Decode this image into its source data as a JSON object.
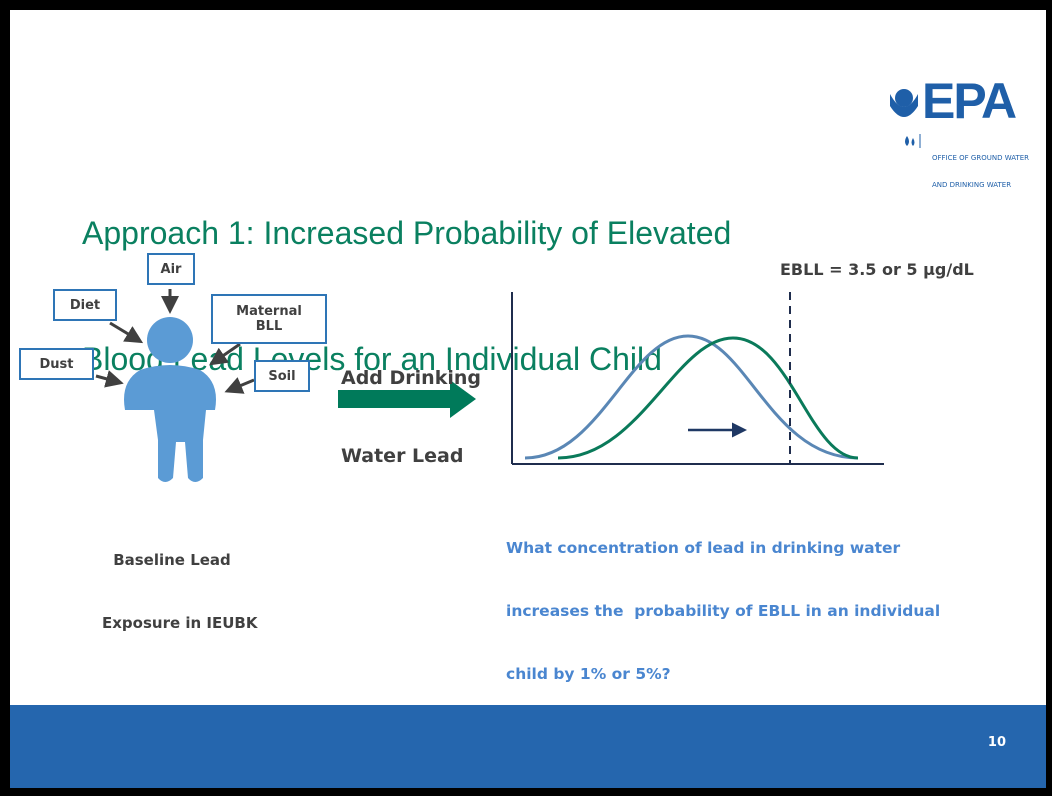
{
  "header": {
    "title_lines": [
      "Approach 1: Increased Probability of Elevated",
      "Blood Lead Levels for an Individual Child"
    ],
    "logo": {
      "name": "EPA",
      "office_lines": [
        "OFFICE OF GROUND WATER",
        "AND DRINKING WATER"
      ]
    }
  },
  "sources": [
    {
      "label_lines": [
        "Air"
      ]
    },
    {
      "label_lines": [
        "Diet"
      ]
    },
    {
      "label_lines": [
        "Maternal",
        "BLL"
      ]
    },
    {
      "label_lines": [
        "Dust"
      ]
    },
    {
      "label_lines": [
        "Soil"
      ]
    }
  ],
  "baseline_lines": [
    "Baseline Lead",
    "Exposure in IEUBK"
  ],
  "arrow_label_lines": [
    "Add Drinking",
    "Water Lead"
  ],
  "threshold_label": "EBLL = 3.5 or 5 µg/dL",
  "question_lines": [
    "What concentration of lead in drinking water",
    "increases the  probability of EBLL in an individual",
    "child by 1% or 5%?"
  ],
  "footer": {
    "page_number": "10"
  }
}
